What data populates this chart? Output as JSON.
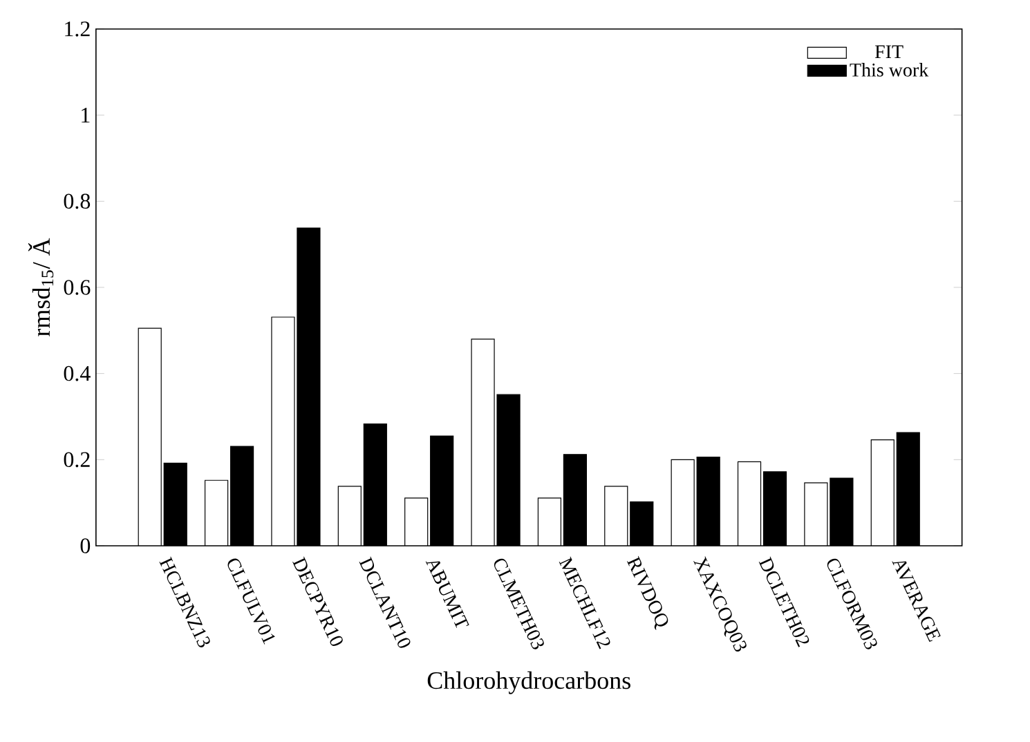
{
  "chart_data": {
    "type": "bar",
    "xlabel": "Chlorohydrocarbons",
    "ylabel": "rmsd$_{15}$/ Ǎ",
    "categories": [
      "HCLBNZ13",
      "CLFULV01",
      "DECPYR10",
      "DCLANT10",
      "ABUMIT",
      "CLMETH03",
      "MECHLF12",
      "RIVDOQ",
      "XAXCOQ03",
      "DCLETH02",
      "CLFORM03",
      "AVERAGE"
    ],
    "series": [
      {
        "name": "FIT",
        "color": "#ffffff",
        "values": [
          0.505,
          0.152,
          0.531,
          0.138,
          0.111,
          0.48,
          0.111,
          0.138,
          0.2,
          0.195,
          0.146,
          0.246
        ]
      },
      {
        "name": "This work",
        "color": "#000000",
        "values": [
          0.192,
          0.231,
          0.738,
          0.283,
          0.255,
          0.351,
          0.212,
          0.102,
          0.206,
          0.172,
          0.157,
          0.263
        ]
      }
    ],
    "ylim": [
      0,
      1.2
    ],
    "yticks": [
      0,
      0.2,
      0.4,
      0.6,
      0.8,
      1,
      1.2
    ],
    "legend": "top right",
    "grid": false
  }
}
